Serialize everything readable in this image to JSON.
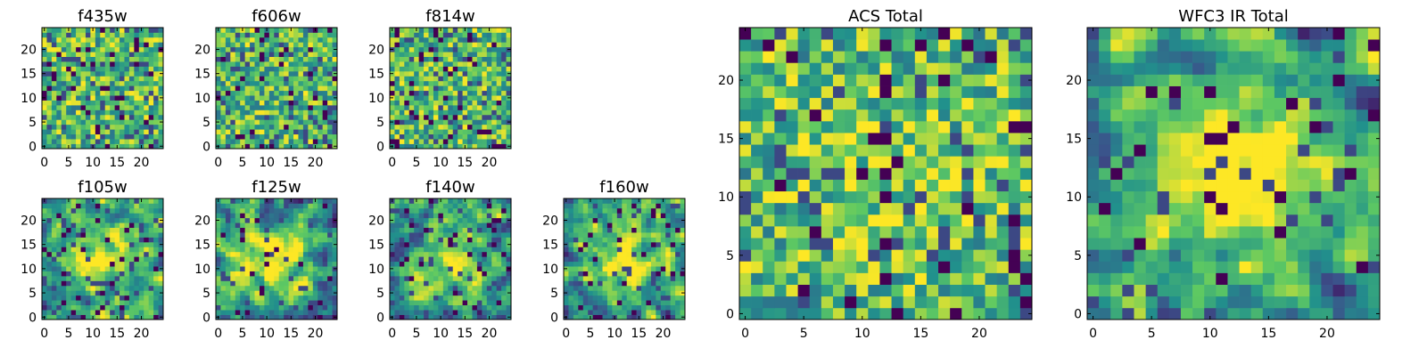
{
  "colormap": [
    "#440154",
    "#3b528b",
    "#21918c",
    "#5ec962",
    "#fde725"
  ],
  "chart_data": [
    {
      "type": "heatmap",
      "title": "f435w",
      "grid_size": 25,
      "xlim": [
        0,
        24
      ],
      "ylim": [
        0,
        24
      ],
      "xticks": [
        "0",
        "5",
        "10",
        "15",
        "20"
      ],
      "yticks": [
        "0",
        "5",
        "10",
        "15",
        "20"
      ],
      "pattern": "noise",
      "peak_strength": 0.0,
      "dark_fraction": 0.06,
      "seed": 11
    },
    {
      "type": "heatmap",
      "title": "f606w",
      "grid_size": 25,
      "xlim": [
        0,
        24
      ],
      "ylim": [
        0,
        24
      ],
      "xticks": [
        "0",
        "5",
        "10",
        "15",
        "20"
      ],
      "yticks": [
        "0",
        "5",
        "10",
        "15",
        "20"
      ],
      "pattern": "noise",
      "peak_strength": 0.0,
      "dark_fraction": 0.05,
      "seed": 23
    },
    {
      "type": "heatmap",
      "title": "f814w",
      "grid_size": 25,
      "xlim": [
        0,
        24
      ],
      "ylim": [
        0,
        24
      ],
      "xticks": [
        "0",
        "5",
        "10",
        "15",
        "20"
      ],
      "yticks": [
        "0",
        "5",
        "10",
        "15",
        "20"
      ],
      "pattern": "noise",
      "peak_strength": 0.0,
      "dark_fraction": 0.05,
      "seed": 37
    },
    {
      "type": "heatmap",
      "title": "f105w",
      "grid_size": 25,
      "xlim": [
        0,
        24
      ],
      "ylim": [
        0,
        24
      ],
      "xticks": [
        "0",
        "5",
        "10",
        "15",
        "20"
      ],
      "yticks": [
        "0",
        "5",
        "10",
        "15",
        "20"
      ],
      "pattern": "central-source",
      "peak_strength": 0.45,
      "dark_fraction": 0.05,
      "seed": 41
    },
    {
      "type": "heatmap",
      "title": "f125w",
      "grid_size": 25,
      "xlim": [
        0,
        24
      ],
      "ylim": [
        0,
        24
      ],
      "xticks": [
        "0",
        "5",
        "10",
        "15",
        "20"
      ],
      "yticks": [
        "0",
        "5",
        "10",
        "15",
        "20"
      ],
      "pattern": "central-source",
      "peak_strength": 0.45,
      "dark_fraction": 0.04,
      "seed": 53
    },
    {
      "type": "heatmap",
      "title": "f140w",
      "grid_size": 25,
      "xlim": [
        0,
        24
      ],
      "ylim": [
        0,
        24
      ],
      "xticks": [
        "0",
        "5",
        "10",
        "15",
        "20"
      ],
      "yticks": [
        "0",
        "5",
        "10",
        "15",
        "20"
      ],
      "pattern": "central-source",
      "peak_strength": 0.35,
      "dark_fraction": 0.05,
      "seed": 67
    },
    {
      "type": "heatmap",
      "title": "f160w",
      "grid_size": 25,
      "xlim": [
        0,
        24
      ],
      "ylim": [
        0,
        24
      ],
      "xticks": [
        "0",
        "5",
        "10",
        "15",
        "20"
      ],
      "yticks": [
        "0",
        "5",
        "10",
        "15",
        "20"
      ],
      "pattern": "central-source",
      "peak_strength": 0.5,
      "dark_fraction": 0.04,
      "seed": 79
    },
    {
      "type": "heatmap",
      "title": "ACS Total",
      "grid_size": 25,
      "xlim": [
        0,
        24
      ],
      "ylim": [
        0,
        24
      ],
      "xticks": [
        "0",
        "5",
        "10",
        "15",
        "20"
      ],
      "yticks": [
        "0",
        "5",
        "10",
        "15",
        "20"
      ],
      "pattern": "noise",
      "peak_strength": 0.1,
      "dark_fraction": 0.04,
      "seed": 97
    },
    {
      "type": "heatmap",
      "title": "WFC3 IR Total",
      "grid_size": 25,
      "xlim": [
        0,
        24
      ],
      "ylim": [
        0,
        24
      ],
      "xticks": [
        "0",
        "5",
        "10",
        "15",
        "20"
      ],
      "yticks": [
        "0",
        "5",
        "10",
        "15",
        "20"
      ],
      "pattern": "central-source",
      "peak_strength": 0.55,
      "dark_fraction": 0.03,
      "seed": 113
    }
  ]
}
